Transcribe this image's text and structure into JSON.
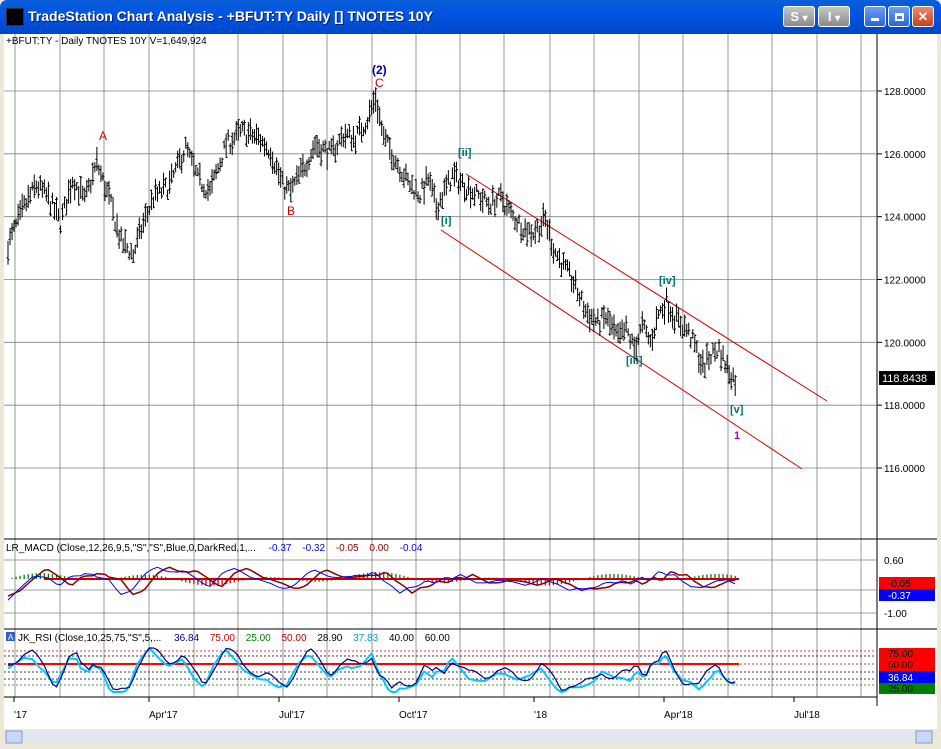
{
  "window": {
    "title": "TradeStation Chart Analysis - +BFUT:TY Daily [] TNOTES 10Y",
    "btn_s": "S",
    "btn_i": "I",
    "btn_dropdown": "▾"
  },
  "header": {
    "symbol_line": "+BFUT:TY - Daily  TNOTES 10Y  V=1,649,924"
  },
  "colors": {
    "bar": "#000000",
    "wave_red": "#cc0000",
    "wave_teal": "#007070",
    "wave_blue": "#0000aa",
    "wave_purple": "#b000b0",
    "channel": "#dd0000",
    "macd_blue": "#0000ff",
    "macd_darkred": "#8b0000",
    "rsi_cyan": "#00c8ff",
    "rsi_navy": "#000080"
  },
  "chart_data": [
    {
      "type": "ohlc",
      "name": "price",
      "ylim": [
        114.0,
        130.0
      ],
      "yticks": [
        "128.0000",
        "126.0000",
        "124.0000",
        "122.0000",
        "120.0000",
        "118.0000",
        "116.0000"
      ],
      "last_price": "118.8438",
      "xticks": [
        "'17",
        "Apr'17",
        "Jul'17",
        "Oct'17",
        "'18",
        "Apr'18",
        "Jul'18"
      ],
      "close_path": [
        [
          0,
          123.1
        ],
        [
          8,
          124.3
        ],
        [
          14,
          125.0
        ],
        [
          20,
          124.6
        ],
        [
          26,
          123.8
        ],
        [
          32,
          125.2
        ],
        [
          38,
          124.5
        ],
        [
          44,
          125.7
        ],
        [
          50,
          124.6
        ],
        [
          56,
          123.2
        ],
        [
          62,
          122.8
        ],
        [
          66,
          123.6
        ],
        [
          72,
          124.6
        ],
        [
          80,
          125.0
        ],
        [
          88,
          126.2
        ],
        [
          94,
          125.2
        ],
        [
          100,
          124.8
        ],
        [
          108,
          126.3
        ],
        [
          116,
          126.7
        ],
        [
          124,
          126.5
        ],
        [
          130,
          126.1
        ],
        [
          136,
          125.0
        ],
        [
          140,
          124.8
        ],
        [
          146,
          125.5
        ],
        [
          152,
          126.3
        ],
        [
          160,
          126.0
        ],
        [
          166,
          126.6
        ],
        [
          172,
          126.5
        ],
        [
          178,
          127.1
        ],
        [
          182,
          127.8
        ],
        [
          186,
          126.5
        ],
        [
          192,
          125.8
        ],
        [
          198,
          125.1
        ],
        [
          204,
          124.7
        ],
        [
          208,
          125.2
        ],
        [
          212,
          124.3
        ],
        [
          220,
          125.3
        ],
        [
          226,
          125.0
        ],
        [
          232,
          124.7
        ],
        [
          238,
          124.4
        ],
        [
          244,
          124.6
        ],
        [
          250,
          124.0
        ],
        [
          256,
          123.6
        ],
        [
          260,
          123.5
        ],
        [
          266,
          123.9
        ],
        [
          270,
          123.0
        ],
        [
          276,
          122.3
        ],
        [
          280,
          121.9
        ],
        [
          286,
          121.0
        ],
        [
          292,
          120.6
        ],
        [
          296,
          120.8
        ],
        [
          302,
          120.1
        ],
        [
          306,
          120.4
        ],
        [
          310,
          119.8
        ],
        [
          314,
          120.5
        ],
        [
          318,
          120.0
        ],
        [
          322,
          120.9
        ],
        [
          326,
          121.3
        ],
        [
          330,
          120.8
        ],
        [
          336,
          120.4
        ],
        [
          340,
          119.9
        ],
        [
          344,
          119.2
        ],
        [
          348,
          119.6
        ],
        [
          352,
          119.8
        ],
        [
          356,
          119.2
        ],
        [
          360,
          118.8
        ]
      ]
    },
    {
      "type": "line",
      "name": "LR_MACD",
      "ylim": [
        -1.2,
        0.8
      ],
      "yticks": [
        "0.60",
        "-1.00"
      ],
      "badges": [
        "-0.05",
        "-0.37"
      ]
    },
    {
      "type": "line",
      "name": "JK_RSI",
      "ylim": [
        20,
        90
      ],
      "badges": [
        "75.00",
        "50.00",
        "36.84",
        "25.00"
      ]
    }
  ],
  "annotations": {
    "A": "A",
    "B": "B",
    "C": "C",
    "w2": "(2)",
    "i": "[i]",
    "ii": "[ii]",
    "iii": "[iii]",
    "iv": "[iv]",
    "v": "[v]",
    "one": "1"
  },
  "macd": {
    "params": "LR_MACD (Close,12,26,9,5,\"S\",\"S\",Blue,0,DarkRed,1,...",
    "v1": "-0.37",
    "v2": "-0.32",
    "v3": "-0.05",
    "v4": "0.00",
    "v5": "-0.04"
  },
  "rsi": {
    "badge": "A",
    "params": "JK_RSI (Close,10,25,75,\"S\",5,...",
    "v1": "36.84",
    "v2": "75.00",
    "v3": "25.00",
    "v4": "50.00",
    "v5": "28.90",
    "v6": "37.83",
    "v7": "40.00",
    "v8": "60.00"
  }
}
